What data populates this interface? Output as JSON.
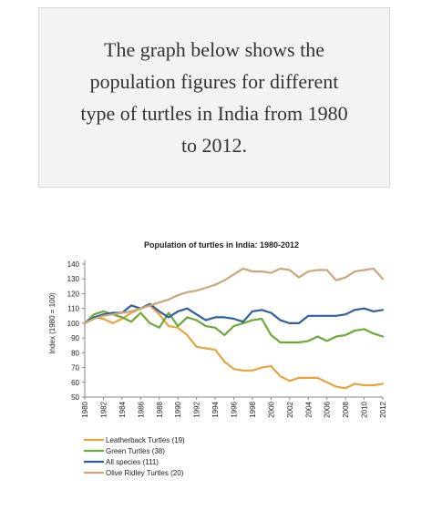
{
  "prompt": {
    "text": "The graph below shows the population figures for different type of turtles in India from 1980 to 2012."
  },
  "chart_data": {
    "type": "line",
    "title": "Population of turtles in India: 1980-2012",
    "xlabel": "",
    "ylabel": "Index (1980 = 100)",
    "ylim": [
      50,
      140
    ],
    "yticks": [
      50,
      60,
      70,
      80,
      90,
      100,
      110,
      120,
      130,
      140
    ],
    "xlim": [
      1980,
      2012
    ],
    "xticks": [
      1980,
      1982,
      1984,
      1986,
      1988,
      1990,
      1992,
      1994,
      1996,
      1998,
      2000,
      2002,
      2004,
      2006,
      2008,
      2010,
      2012
    ],
    "grid": false,
    "legend_position": "bottom-left",
    "x": [
      1980,
      1981,
      1982,
      1983,
      1984,
      1985,
      1986,
      1987,
      1988,
      1989,
      1990,
      1991,
      1992,
      1993,
      1994,
      1995,
      1996,
      1997,
      1998,
      1999,
      2000,
      2001,
      2002,
      2003,
      2004,
      2005,
      2006,
      2007,
      2008,
      2009,
      2010,
      2011,
      2012
    ],
    "series": [
      {
        "name": "Leatherback Turtles (19)",
        "color": "#e8a33d",
        "values": [
          100,
          104,
          103,
          100,
          103,
          107,
          110,
          112,
          106,
          98,
          97,
          92,
          84,
          83,
          82,
          74,
          69,
          68,
          68,
          70,
          71,
          64,
          61,
          63,
          63,
          63,
          60,
          57,
          56,
          59,
          58,
          58,
          59
        ]
      },
      {
        "name": "Green Turtles (38)",
        "color": "#6ea83a",
        "values": [
          100,
          106,
          108,
          106,
          104,
          101,
          107,
          100,
          97,
          107,
          98,
          104,
          102,
          98,
          97,
          92,
          98,
          100,
          102,
          103,
          92,
          87,
          87,
          87,
          88,
          91,
          88,
          91,
          92,
          95,
          96,
          93,
          91
        ]
      },
      {
        "name": "All species (111)",
        "color": "#2f5f9e",
        "values": [
          100,
          104,
          106,
          107,
          107,
          112,
          110,
          113,
          108,
          104,
          108,
          110,
          106,
          102,
          104,
          104,
          103,
          101,
          108,
          109,
          107,
          102,
          100,
          100,
          105,
          105,
          105,
          105,
          106,
          109,
          110,
          108,
          109
        ]
      },
      {
        "name": "Olive Ridley Turtles (20)",
        "color": "#c9a77a",
        "values": [
          100,
          103,
          105,
          106,
          107,
          108,
          110,
          112,
          114,
          116,
          119,
          121,
          122,
          124,
          126,
          129,
          133,
          137,
          135,
          135,
          134,
          137,
          136,
          131,
          135,
          136,
          136,
          129,
          131,
          135,
          136,
          137,
          130
        ]
      }
    ]
  }
}
